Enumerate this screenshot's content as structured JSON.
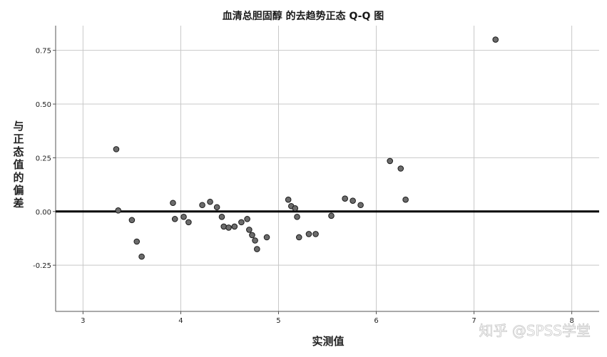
{
  "chart_data": {
    "type": "scatter",
    "title": "血清总胆固醇 的去趋势正态 Q-Q 图",
    "xlabel": "实测值",
    "ylabel": "与正态值的偏差",
    "xlim": [
      2.72,
      8.28
    ],
    "ylim": [
      -0.465,
      0.865
    ],
    "xticks": [
      3,
      4,
      5,
      6,
      7,
      8
    ],
    "xtick_labels": [
      "3",
      "4",
      "5",
      "6",
      "7",
      "8"
    ],
    "yticks": [
      0.75,
      0.5,
      0.25,
      0.0,
      -0.25
    ],
    "ytick_labels": [
      "0.75",
      "0.50",
      "0.25",
      "0.00",
      "-0.25"
    ],
    "grid": true,
    "reference_line": 0,
    "point_color": "#6b6b6b",
    "point_edge_color": "#1a1a1a",
    "points": [
      {
        "x": 3.34,
        "y": 0.29
      },
      {
        "x": 3.36,
        "y": 0.005
      },
      {
        "x": 3.5,
        "y": -0.04
      },
      {
        "x": 3.55,
        "y": -0.14
      },
      {
        "x": 3.6,
        "y": -0.21
      },
      {
        "x": 3.92,
        "y": 0.04
      },
      {
        "x": 3.94,
        "y": -0.035
      },
      {
        "x": 4.03,
        "y": -0.025
      },
      {
        "x": 4.08,
        "y": -0.05
      },
      {
        "x": 4.22,
        "y": 0.03
      },
      {
        "x": 4.3,
        "y": 0.045
      },
      {
        "x": 4.37,
        "y": 0.02
      },
      {
        "x": 4.42,
        "y": -0.025
      },
      {
        "x": 4.44,
        "y": -0.07
      },
      {
        "x": 4.49,
        "y": -0.075
      },
      {
        "x": 4.55,
        "y": -0.07
      },
      {
        "x": 4.62,
        "y": -0.05
      },
      {
        "x": 4.68,
        "y": -0.035
      },
      {
        "x": 4.7,
        "y": -0.085
      },
      {
        "x": 4.73,
        "y": -0.11
      },
      {
        "x": 4.76,
        "y": -0.135
      },
      {
        "x": 4.78,
        "y": -0.175
      },
      {
        "x": 4.88,
        "y": -0.12
      },
      {
        "x": 5.1,
        "y": 0.055
      },
      {
        "x": 5.13,
        "y": 0.025
      },
      {
        "x": 5.17,
        "y": 0.015
      },
      {
        "x": 5.19,
        "y": -0.025
      },
      {
        "x": 5.21,
        "y": -0.12
      },
      {
        "x": 5.31,
        "y": -0.105
      },
      {
        "x": 5.38,
        "y": -0.105
      },
      {
        "x": 5.54,
        "y": -0.02
      },
      {
        "x": 5.68,
        "y": 0.06
      },
      {
        "x": 5.76,
        "y": 0.05
      },
      {
        "x": 5.84,
        "y": 0.03
      },
      {
        "x": 6.14,
        "y": 0.235
      },
      {
        "x": 6.25,
        "y": 0.2
      },
      {
        "x": 6.3,
        "y": 0.055
      },
      {
        "x": 7.22,
        "y": 0.8
      }
    ]
  },
  "watermark": "知乎 @SPSS学堂"
}
